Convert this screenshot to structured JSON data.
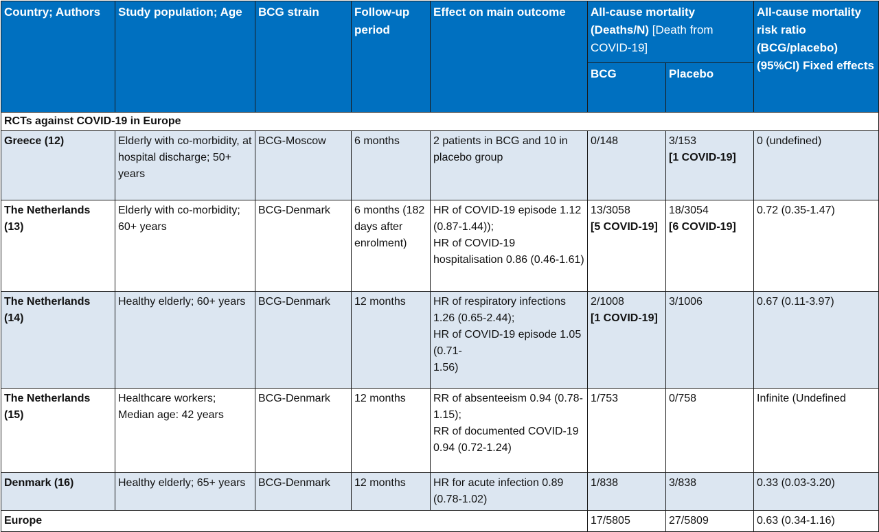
{
  "headers": {
    "country": "Country; Authors",
    "population": "Study population; Age",
    "strain": "BCG strain",
    "followup": "Follow-up period",
    "effect": "Effect on main outcome",
    "mortality_bold": "All-cause mortality (Deaths/N)",
    "mortality_normal": "[Death from COVID-19]",
    "bcg": "BCG",
    "placebo": "Placebo",
    "risk_ratio": "All-cause mortality risk ratio (BCG/placebo) (95%CI) Fixed effects"
  },
  "section_label": "RCTs against COVID-19 in Europe",
  "rows": [
    {
      "country": "Greece (12)",
      "population": "Elderly with co-morbidity, at hospital discharge; 50+ years",
      "strain": "BCG-Moscow",
      "followup": "6 months",
      "effect": [
        "2 patients in BCG and 10 in placebo group"
      ],
      "bcg": "0/148",
      "bcg_covid": "",
      "placebo": "3/153",
      "placebo_covid": "[1 COVID-19]",
      "rr": "0 (undefined)"
    },
    {
      "country": "The Netherlands (13)",
      "population": "Elderly with co-morbidity; 60+ years",
      "strain": "BCG-Denmark",
      "followup": "6 months (182 days after enrolment)",
      "effect": [
        "HR of COVID-19 episode 1.12 (0.87-1.44));",
        "HR of COVID-19 hospitalisation 0.86 (0.46-1.61)"
      ],
      "bcg": "13/3058",
      "bcg_covid": "[5 COVID-19]",
      "placebo": "18/3054",
      "placebo_covid": "[6 COVID-19]",
      "rr": "0.72 (0.35-1.47)"
    },
    {
      "country": "The Netherlands (14)",
      "population": "Healthy elderly; 60+ years",
      "strain": "BCG-Denmark",
      "followup": "12 months",
      "effect": [
        "HR of respiratory infections 1.26 (0.65-2.44);",
        "HR of COVID-19 episode 1.05 (0.71-",
        "1.56)"
      ],
      "bcg": "2/1008",
      "bcg_covid": "[1 COVID-19]",
      "placebo": "3/1006",
      "placebo_covid": "",
      "rr": "0.67 (0.11-3.97)"
    },
    {
      "country": "The Netherlands (15)",
      "population": "Healthcare workers; Median age: 42 years",
      "strain": "BCG-Denmark",
      "followup": "12 months",
      "effect": [
        "RR of absenteeism 0.94 (0.78-1.15);",
        "RR of documented COVID-19 0.94 (0.72-1.24)"
      ],
      "bcg": "1/753",
      "bcg_covid": "",
      "placebo": "0/758",
      "placebo_covid": "",
      "rr": "Infinite (Undefined"
    },
    {
      "country": "Denmark (16)",
      "population": "Healthy elderly; 65+ years",
      "strain": "BCG-Denmark",
      "followup": "12 months",
      "effect": [
        "HR for acute infection 0.89 (0.78-1.02)"
      ],
      "bcg": "1/838",
      "bcg_covid": "",
      "placebo": "3/838",
      "placebo_covid": "",
      "rr": "0.33 (0.03-3.20)"
    }
  ],
  "total": {
    "label": "Europe",
    "bcg": "17/5805",
    "placebo": "27/5809",
    "rr": "0.63 (0.34-1.16)"
  }
}
